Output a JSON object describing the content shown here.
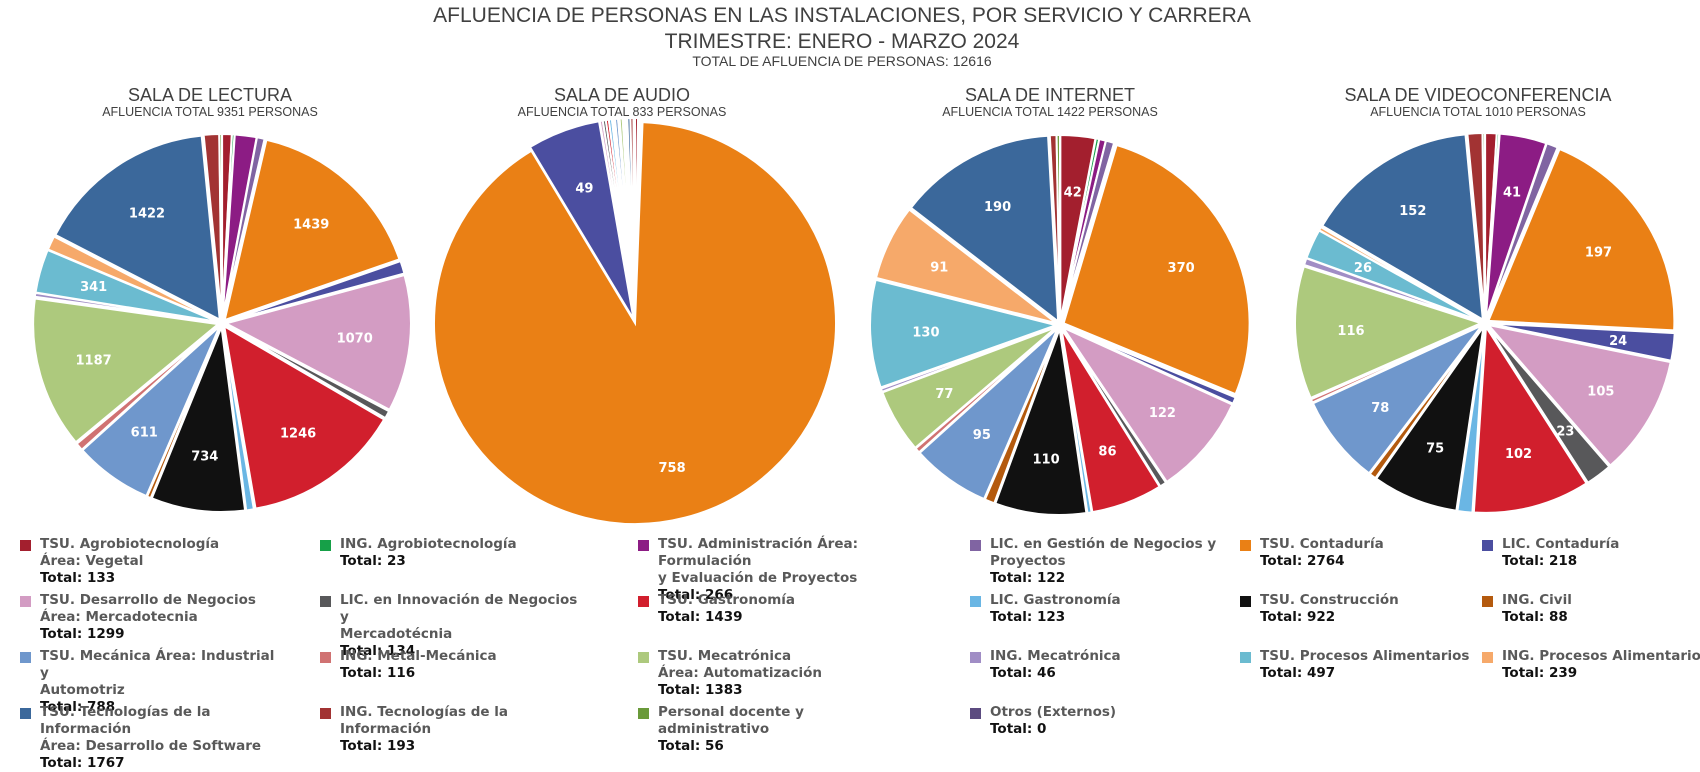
{
  "chart_data": {
    "type": "pie",
    "title": "AFLUENCIA DE PERSONAS EN LAS INSTALACIONES, POR SERVICIO Y CARRERA",
    "subtitle": "TRIMESTRE: ENERO - MARZO 2024",
    "total_label": "TOTAL DE AFLUENCIA DE PERSONAS: 12616",
    "categories": [
      "TSU.  Agrobiotecnología\nÁrea: Vegetal",
      "ING. Agrobiotecnología",
      "TSU. Administración Área: Formulación\n y Evaluación de Proyectos",
      "LIC. en Gestión de Negocios y\nProyectos",
      "TSU. Contaduría",
      "LIC. Contaduría",
      "TSU. Desarrollo de Negocios\nÁrea: Mercadotecnia",
      "LIC. en Innovación de Negocios y\nMercadotécnia",
      "TSU. Gastronomía",
      "LIC. Gastronomía",
      "TSU. Construcción",
      "ING. Civil",
      "TSU. Mecánica Área: Industrial y\nAutomotriz",
      "ING. Metal-Mecánica",
      "TSU. Mecatrónica\nÁrea: Automatización",
      "ING. Mecatrónica",
      "TSU. Procesos Alimentarios",
      "ING. Procesos Alimentarios",
      "TSU. Tecnologías de la Información\nÁrea: Desarrollo de Software",
      "ING. Tecnologías de la Información",
      "Personal docente y administrativo",
      "Otros (Externos)"
    ],
    "colors": [
      "#a31f2e",
      "#16a048",
      "#8c1c84",
      "#8064a2",
      "#ea8015",
      "#4b4ea0",
      "#d39cc3",
      "#58585a",
      "#d11f2d",
      "#6ab6e4",
      "#111111",
      "#b45a0e",
      "#6f97cc",
      "#d07272",
      "#adc97d",
      "#a08dc5",
      "#6bbbd0",
      "#f6a96a",
      "#3b689b",
      "#a23333",
      "#6a9a3a",
      "#5c4b80"
    ],
    "legend_totals": [
      "Total: 133",
      "Total: 23",
      "Total: 266",
      "Total: 122",
      "Total: 2764",
      "Total: 218",
      "Total: 1299",
      "Total: 134",
      "Total: 1439",
      "Total: 123",
      "Total: 922",
      "Total: 88",
      "Total: 788",
      "Total: 116",
      "Total: 1383",
      "Total: 46",
      "Total: 497",
      "Total: 239",
      "Total: 1767",
      "Total: 193",
      "Total: 56",
      "Total: 0"
    ],
    "pies": [
      {
        "title": "SALA DE LECTURA",
        "subtitle": "AFLUENCIA TOTAL 9351 PERSONAS",
        "values": [
          75,
          20,
          170,
          60,
          1439,
          100,
          1070,
          60,
          1246,
          60,
          734,
          30,
          611,
          60,
          1187,
          30,
          341,
          110,
          1422,
          120,
          20,
          0
        ],
        "labels": [
          "",
          "",
          "",
          "",
          "1439",
          "",
          "1070",
          "",
          "1246",
          "",
          "734",
          "",
          "611",
          "",
          "1187",
          "",
          "341",
          "",
          "1422",
          "",
          "",
          ""
        ]
      },
      {
        "title": "SALA DE AUDIO",
        "subtitle": "AFLUENCIA TOTAL 833 PERSONAS",
        "values": [
          2,
          1,
          1,
          1,
          758,
          49,
          2,
          2,
          2,
          2,
          1,
          1,
          2,
          1,
          2,
          1,
          1,
          1,
          2,
          2,
          1,
          0
        ],
        "labels": [
          "",
          "",
          "",
          "",
          "758",
          "49",
          "",
          "",
          "",
          "",
          "",
          "",
          "",
          "",
          "",
          "",
          "",
          "",
          "",
          "",
          "",
          ""
        ]
      },
      {
        "title": "SALA DE INTERNET",
        "subtitle": "AFLUENCIA TOTAL 1422 PERSONAS",
        "values": [
          42,
          4,
          8,
          10,
          370,
          8,
          122,
          8,
          86,
          5,
          110,
          12,
          95,
          6,
          77,
          4,
          130,
          91,
          190,
          8,
          4,
          0
        ],
        "labels": [
          "42",
          "",
          "",
          "",
          "370",
          "",
          "122",
          "",
          "86",
          "",
          "110",
          "",
          "95",
          "",
          "77",
          "",
          "130",
          "91",
          "190",
          "",
          "",
          ""
        ]
      },
      {
        "title": "SALA DE VIDEOCONFERENCIA",
        "subtitle": "AFLUENCIA TOTAL 1010 PERSONAS",
        "values": [
          10,
          2,
          41,
          10,
          197,
          24,
          105,
          23,
          102,
          13,
          75,
          6,
          78,
          3,
          116,
          6,
          26,
          3,
          152,
          13,
          2,
          0
        ],
        "labels": [
          "",
          "",
          "41",
          "",
          "197",
          "24",
          "105",
          "23",
          "102",
          "",
          "75",
          "",
          "78",
          "",
          "116",
          "",
          "26",
          "",
          "152",
          "",
          "",
          ""
        ]
      }
    ],
    "legend_placement": "bottom"
  }
}
